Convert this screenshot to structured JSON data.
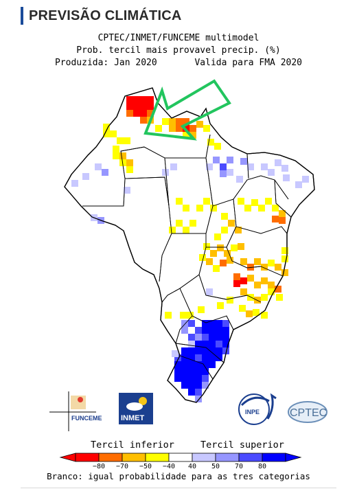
{
  "header": {
    "title": "PREVISÃO CLIMÁTICA"
  },
  "map": {
    "title_line1": "CPTEC/INMET/FUNCEME multimodel",
    "title_line2": "Prob. tercil mais provavel precip. (%)",
    "title_line3": "Produzida: Jan 2020       Valida para FMA 2020"
  },
  "legend": {
    "lower_label": "Tercil inferior",
    "upper_label": "Tercil superior",
    "ticks": [
      "−80",
      "−70",
      "−50",
      "−40",
      "40",
      "50",
      "70",
      "80"
    ],
    "colors": {
      "n80": "#ff0000",
      "n70": "#ff6d00",
      "n50": "#ffbf00",
      "n40": "#ffff00",
      "neutral": "#ffffff",
      "p40": "#c8c8ff",
      "p50": "#9696ff",
      "p70": "#4b4bff",
      "p80": "#0000ff"
    },
    "footnote": "Branco: igual probabilidade para as tres categorias"
  },
  "logos": {
    "funceme": "FUNCEME",
    "inmet": "INMET",
    "inpe": "INPE",
    "cptec": "CPTEC"
  },
  "annotation": {
    "arrow_color": "#22c55e"
  }
}
